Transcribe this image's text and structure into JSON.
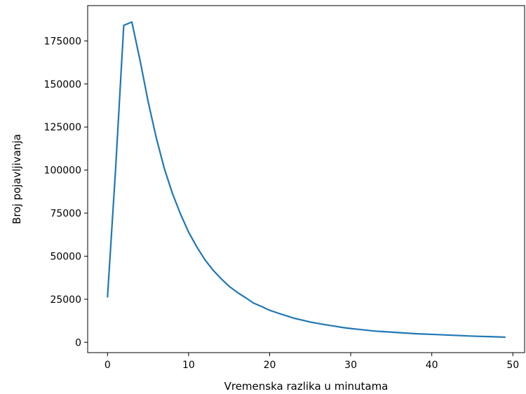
{
  "chart_data": {
    "type": "line",
    "title": "",
    "xlabel": "Vremenska razlika u minutama",
    "ylabel": "Broj pojavljivanja",
    "xlim": [
      -2.45,
      51.45
    ],
    "ylim": [
      -6000,
      195500
    ],
    "x_ticks": [
      0,
      10,
      20,
      30,
      40,
      50
    ],
    "x_tick_labels": [
      "0",
      "10",
      "20",
      "30",
      "40",
      "50"
    ],
    "y_ticks": [
      0,
      25000,
      50000,
      75000,
      100000,
      125000,
      150000,
      175000
    ],
    "y_tick_labels": [
      "0",
      "25000",
      "50000",
      "75000",
      "100000",
      "125000",
      "150000",
      "175000"
    ],
    "grid": false,
    "line_color": "#1f77b4",
    "series": [
      {
        "x": [
          0,
          1,
          2,
          3,
          4,
          5,
          6,
          7,
          8,
          9,
          10,
          11,
          12,
          13,
          14,
          15,
          16,
          17,
          18,
          19,
          20,
          21,
          22,
          23,
          24,
          25,
          26,
          27,
          28,
          29,
          30,
          31,
          32,
          33,
          34,
          35,
          36,
          37,
          38,
          39,
          40,
          41,
          42,
          43,
          44,
          45,
          46,
          47,
          48,
          49
        ],
        "y": [
          26500,
          101000,
          184000,
          186000,
          164000,
          140000,
          119000,
          101000,
          86500,
          74500,
          64000,
          55500,
          48000,
          42000,
          37000,
          32500,
          29000,
          26000,
          22800,
          20800,
          18600,
          17000,
          15500,
          14000,
          12900,
          11800,
          10900,
          10100,
          9400,
          8600,
          8000,
          7500,
          7000,
          6500,
          6200,
          5900,
          5600,
          5300,
          5000,
          4800,
          4600,
          4400,
          4200,
          4000,
          3800,
          3600,
          3450,
          3300,
          3150,
          3000
        ]
      }
    ]
  }
}
